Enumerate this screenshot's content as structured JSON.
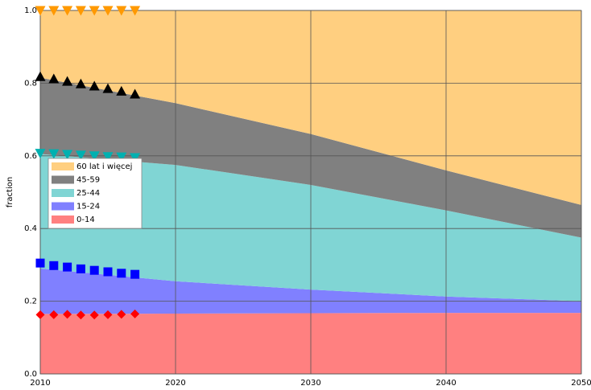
{
  "chart_data": {
    "type": "stacked_area",
    "y_label": "fraction",
    "x": [
      2010,
      2020,
      2030,
      2040,
      2050
    ],
    "series": [
      {
        "name": "0-14",
        "color": "#ff8080",
        "values": [
          0.165,
          0.166,
          0.167,
          0.168,
          0.168
        ]
      },
      {
        "name": "15-24",
        "color": "#8080ff",
        "values": [
          0.125,
          0.089,
          0.065,
          0.045,
          0.032
        ]
      },
      {
        "name": "25-44",
        "color": "#80d5d4",
        "values": [
          0.315,
          0.32,
          0.288,
          0.237,
          0.175
        ]
      },
      {
        "name": "45-59",
        "color": "#808080",
        "values": [
          0.21,
          0.17,
          0.14,
          0.11,
          0.09
        ]
      },
      {
        "name": "60 lat i więcej",
        "color": "#ffcf80",
        "values": [
          0.185,
          0.255,
          0.34,
          0.44,
          0.535
        ]
      }
    ],
    "marker_x": [
      2010,
      2011,
      2012,
      2013,
      2014,
      2015,
      2016,
      2017
    ],
    "marker_series": [
      {
        "color": "#ff0000",
        "marker": "diamond",
        "values": [
          0.163,
          0.163,
          0.164,
          0.162,
          0.162,
          0.163,
          0.164,
          0.165
        ]
      },
      {
        "color": "#0000ff",
        "marker": "square",
        "values": [
          0.305,
          0.298,
          0.294,
          0.289,
          0.285,
          0.281,
          0.277,
          0.274
        ]
      },
      {
        "color": "#00b0b0",
        "marker": "triangle-down",
        "values": [
          0.607,
          0.606,
          0.604,
          0.602,
          0.6,
          0.598,
          0.597,
          0.595
        ]
      },
      {
        "color": "#000000",
        "marker": "triangle-up",
        "values": [
          0.818,
          0.812,
          0.805,
          0.798,
          0.792,
          0.785,
          0.778,
          0.77
        ]
      },
      {
        "color": "#ff9900",
        "marker": "triangle-down",
        "values": [
          1.0,
          1.0,
          1.0,
          1.0,
          1.0,
          1.0,
          1.0,
          1.0
        ]
      }
    ],
    "xlim": [
      2010,
      2050
    ],
    "xticks": [
      2010,
      2020,
      2030,
      2040,
      2050
    ],
    "ylim": [
      0,
      1
    ],
    "yticks": [
      {
        "value": 0,
        "label": "0.0"
      },
      0.2,
      0.4,
      0.6,
      0.8,
      {
        "value": 1,
        "label": "1.0"
      }
    ],
    "grid": true,
    "legend": "left"
  }
}
